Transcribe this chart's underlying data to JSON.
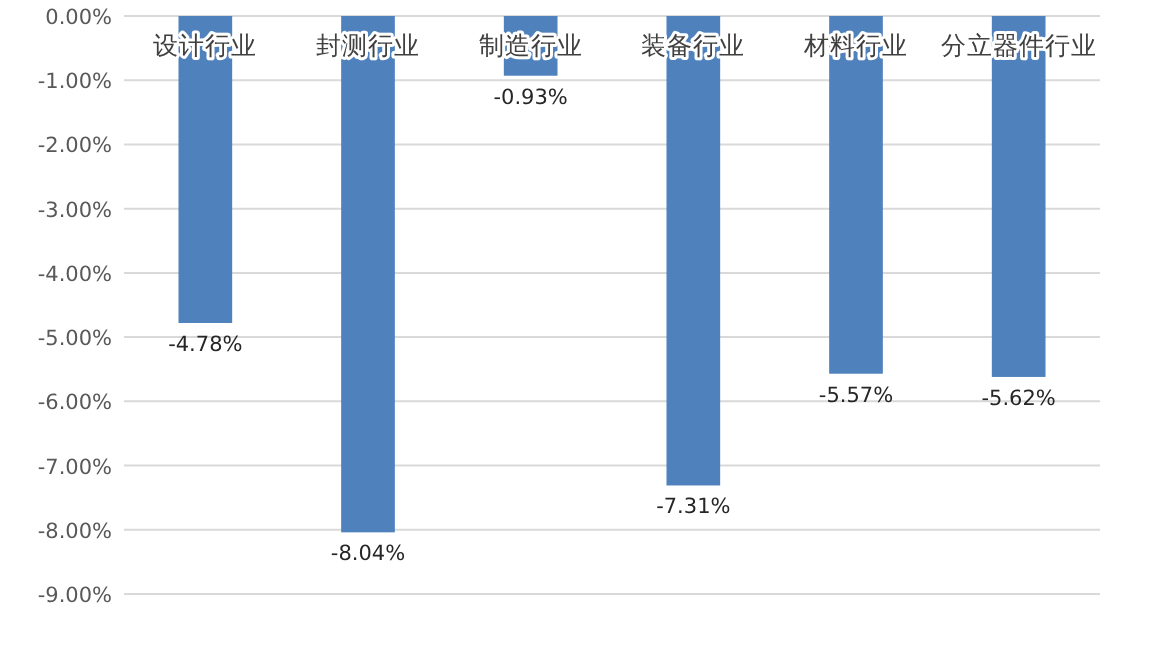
{
  "chart_data": {
    "type": "bar",
    "categories": [
      "设计行业",
      "封测行业",
      "制造行业",
      "装备行业",
      "材料行业",
      "分立器件行业"
    ],
    "values": [
      -4.78,
      -8.04,
      -0.93,
      -7.31,
      -5.57,
      -5.62
    ],
    "value_labels": [
      "-4.78%",
      "-8.04%",
      "-0.93%",
      "-7.31%",
      "-5.57%",
      "-5.62%"
    ],
    "color": "#4f81bd",
    "ylim": [
      -9,
      0
    ],
    "yticks": [
      {
        "value": 0,
        "label": "0.00%"
      },
      {
        "value": -1,
        "label": "-1.00%"
      },
      {
        "value": -2,
        "label": "-2.00%"
      },
      {
        "value": -3,
        "label": "-3.00%"
      },
      {
        "value": -4,
        "label": "-4.00%"
      },
      {
        "value": -5,
        "label": "-5.00%"
      },
      {
        "value": -6,
        "label": "-6.00%"
      },
      {
        "value": -7,
        "label": "-7.00%"
      },
      {
        "value": -8,
        "label": "-8.00%"
      },
      {
        "value": -9,
        "label": "-9.00%"
      }
    ],
    "grid": "y"
  }
}
